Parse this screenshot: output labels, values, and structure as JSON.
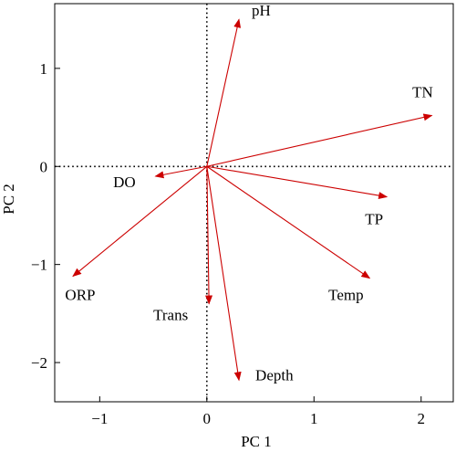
{
  "chart_data": {
    "type": "biplot",
    "title": "",
    "xlabel": "PC 1",
    "ylabel": "PC 2",
    "xlim": [
      -1.42,
      2.3
    ],
    "ylim": [
      -2.4,
      1.66
    ],
    "xticks": [
      -1,
      0,
      1,
      2
    ],
    "yticks": [
      -2,
      -1,
      0,
      1
    ],
    "xtick_labels": [
      "−1",
      "0",
      "1",
      "2"
    ],
    "ytick_labels": [
      "−2",
      "−1",
      "0",
      "1"
    ],
    "grid": false,
    "reference_lines": {
      "x": 0,
      "y": 0,
      "style": "dotted"
    },
    "arrow_color": "#cc0000",
    "vectors": [
      {
        "name": "pH",
        "x": 0.3,
        "y": 1.5
      },
      {
        "name": "TN",
        "x": 2.1,
        "y": 0.52
      },
      {
        "name": "DO",
        "x": -0.48,
        "y": -0.1
      },
      {
        "name": "TP",
        "x": 1.68,
        "y": -0.31
      },
      {
        "name": "Temp",
        "x": 1.52,
        "y": -1.14
      },
      {
        "name": "ORP",
        "x": -1.25,
        "y": -1.12
      },
      {
        "name": "Trans",
        "x": 0.02,
        "y": -1.4
      },
      {
        "name": "Depth",
        "x": 0.3,
        "y": -2.18
      }
    ]
  }
}
